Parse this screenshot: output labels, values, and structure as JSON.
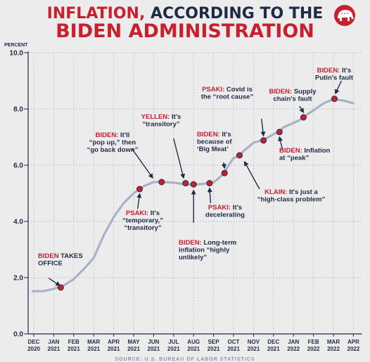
{
  "header": {
    "title_part1": "INFLATION,",
    "title_part2": " ACCORDING TO THE",
    "title_line2": "BIDEN ADMINISTRATION"
  },
  "logo": {
    "name": "republican-elephant-logo",
    "color": "#c8202f"
  },
  "colors": {
    "accent": "#c8202f",
    "dark": "#1f2a44",
    "line": "#a9b1c6",
    "background": "#ececec"
  },
  "source": "SOURCE: U.S. BUREAU OF LABOR STATISTICS",
  "chart_data": {
    "type": "line",
    "title": "INFLATION, ACCORDING TO THE BIDEN ADMINISTRATION",
    "ylabel": "PERCENT",
    "ylim": [
      0,
      10
    ],
    "yticks": [
      "0.0",
      "2.0",
      "4.0",
      "6.0",
      "8.0",
      "10.0"
    ],
    "categories": [
      [
        "DEC",
        "2020"
      ],
      [
        "JAN",
        "2021"
      ],
      [
        "FEB",
        "2021"
      ],
      [
        "MAR",
        "2021"
      ],
      [
        "APR",
        "2021"
      ],
      [
        "MAY",
        "2021"
      ],
      [
        "JUN",
        "2021"
      ],
      [
        "JUL",
        "2021"
      ],
      [
        "AUG",
        "2021"
      ],
      [
        "SEP",
        "2021"
      ],
      [
        "OCT",
        "2021"
      ],
      [
        "NOV",
        "2021"
      ],
      [
        "DEC",
        "2021"
      ],
      [
        "JAN",
        "2022"
      ],
      [
        "FEB",
        "2022"
      ],
      [
        "MAR",
        "2022"
      ],
      [
        "APR",
        "2022"
      ]
    ],
    "grid": true,
    "series": [
      {
        "points": [
          [
            -0.05,
            1.5
          ],
          [
            0,
            1.52
          ],
          [
            0.5,
            1.52
          ],
          [
            1,
            1.6
          ],
          [
            1.5,
            1.72
          ],
          [
            2,
            1.95
          ],
          [
            2.5,
            2.3
          ],
          [
            3,
            2.7
          ],
          [
            3.5,
            3.5
          ],
          [
            4,
            4.15
          ],
          [
            4.5,
            4.65
          ],
          [
            5,
            5.0
          ],
          [
            5.3,
            5.15
          ],
          [
            5.5,
            5.25
          ],
          [
            6,
            5.4
          ],
          [
            6.5,
            5.4
          ],
          [
            7,
            5.38
          ],
          [
            7.3,
            5.35
          ],
          [
            7.5,
            5.32
          ],
          [
            8,
            5.3
          ],
          [
            8.5,
            5.34
          ],
          [
            9,
            5.39
          ],
          [
            9.2,
            5.5
          ],
          [
            9.5,
            5.7
          ],
          [
            9.8,
            6.05
          ],
          [
            10,
            6.25
          ],
          [
            10.3,
            6.35
          ],
          [
            10.5,
            6.5
          ],
          [
            11,
            6.8
          ],
          [
            11.5,
            6.9
          ],
          [
            12,
            7.1
          ],
          [
            12.3,
            7.2
          ],
          [
            12.5,
            7.35
          ],
          [
            13,
            7.5
          ],
          [
            13.3,
            7.6
          ],
          [
            13.5,
            7.72
          ],
          [
            14,
            7.95
          ],
          [
            14.5,
            8.2
          ],
          [
            15,
            8.35
          ],
          [
            15.5,
            8.3
          ],
          [
            16,
            8.2
          ]
        ]
      }
    ],
    "markers": [
      [
        1.35,
        1.65
      ],
      [
        5.3,
        5.15
      ],
      [
        6.4,
        5.4
      ],
      [
        7.6,
        5.36
      ],
      [
        8,
        5.32
      ],
      [
        8.8,
        5.36
      ],
      [
        9.55,
        5.72
      ],
      [
        10.3,
        6.35
      ],
      [
        11.5,
        6.88
      ],
      [
        12.3,
        7.18
      ],
      [
        13.5,
        7.7
      ],
      [
        15.05,
        8.36
      ]
    ],
    "annotations": [
      {
        "lines": [
          [
            [
              "BIDEN",
              "red"
            ],
            [
              " TAKES",
              "dark"
            ]
          ],
          [
            [
              "OFFICE",
              "dark"
            ]
          ]
        ],
        "arrow_from": [
          0.75,
          1.98
        ],
        "arrow_to": [
          1.3,
          1.72
        ]
      },
      {
        "lines": [
          [
            [
              "BIDEN:",
              "red"
            ],
            [
              " It'll",
              "dark"
            ]
          ],
          [
            [
              "“pop up,” then",
              "dark"
            ]
          ],
          [
            [
              "“go back down”",
              "dark"
            ]
          ]
        ],
        "arrow_from": [
          4.9,
          6.6
        ],
        "arrow_to": [
          5.95,
          5.55
        ]
      },
      {
        "lines": [
          [
            [
              "PSAKI:",
              "red"
            ],
            [
              " It's",
              "dark"
            ]
          ],
          [
            [
              "“temporary,”",
              "dark"
            ]
          ],
          [
            [
              "“transitory”",
              "dark"
            ]
          ]
        ],
        "arrow_from": [
          5.2,
          4.45
        ],
        "arrow_to": [
          5.3,
          4.98
        ]
      },
      {
        "lines": [
          [
            [
              "YELLEN:",
              "red"
            ],
            [
              " It's",
              "dark"
            ]
          ],
          [
            [
              "“transitory”",
              "dark"
            ]
          ]
        ],
        "arrow_from": [
          7.0,
          6.95
        ],
        "arrow_to": [
          7.5,
          5.55
        ]
      },
      {
        "lines": [
          [
            [
              "BIDEN:",
              "red"
            ],
            [
              " Long-term",
              "dark"
            ]
          ],
          [
            [
              "inflation “highly",
              "dark"
            ]
          ],
          [
            [
              "unlikely”",
              "dark"
            ]
          ]
        ],
        "arrow_from": [
          8.0,
          3.95
        ],
        "arrow_to": [
          8.0,
          5.1
        ]
      },
      {
        "lines": [
          [
            [
              "PSAKI:",
              "red"
            ],
            [
              " It's",
              "dark"
            ]
          ],
          [
            [
              "decelerating",
              "dark"
            ]
          ]
        ],
        "arrow_from": [
          8.85,
          4.65
        ],
        "arrow_to": [
          8.8,
          5.18
        ]
      },
      {
        "lines": [
          [
            [
              "BIDEN:",
              "red"
            ],
            [
              " It's",
              "dark"
            ]
          ],
          [
            [
              "because of",
              "dark"
            ]
          ],
          [
            [
              "‘Big Meat’",
              "dark"
            ]
          ]
        ],
        "arrow_from": [
          9.5,
          6.1
        ],
        "arrow_to": [
          9.55,
          5.9
        ]
      },
      {
        "lines": [
          [
            [
              "PSAKI:",
              "red"
            ],
            [
              " Covid is",
              "dark"
            ]
          ],
          [
            [
              "the “root cause”",
              "dark"
            ]
          ]
        ],
        "arrow_from": [
          11.4,
          7.65
        ],
        "arrow_to": [
          11.5,
          7.05
        ]
      },
      {
        "lines": [
          [
            [
              "KLAIN:",
              "red"
            ],
            [
              " It's just a",
              "dark"
            ]
          ],
          [
            [
              "“high-class problem”",
              "dark"
            ]
          ]
        ],
        "arrow_from": [
          11.3,
          5.15
        ],
        "arrow_to": [
          10.55,
          6.12
        ]
      },
      {
        "lines": [
          [
            [
              "BIDEN:",
              "red"
            ],
            [
              " Inflation",
              "dark"
            ]
          ],
          [
            [
              "at “peak”",
              "dark"
            ]
          ]
        ],
        "arrow_from": [
          12.45,
          6.55
        ],
        "arrow_to": [
          12.3,
          7.0
        ]
      },
      {
        "lines": [
          [
            [
              "BIDEN:",
              "red"
            ],
            [
              " Supply",
              "dark"
            ]
          ],
          [
            [
              "chain's fault",
              "dark"
            ]
          ]
        ],
        "arrow_from": [
          13.3,
          8.1
        ],
        "arrow_to": [
          13.5,
          7.88
        ]
      },
      {
        "lines": [
          [
            [
              "BIDEN:",
              "red"
            ],
            [
              " It's",
              "dark"
            ]
          ],
          [
            [
              "Putin's fault",
              "dark"
            ]
          ]
        ],
        "arrow_from": [
          15.4,
          9.0
        ],
        "arrow_to": [
          15.1,
          8.55
        ]
      }
    ]
  }
}
